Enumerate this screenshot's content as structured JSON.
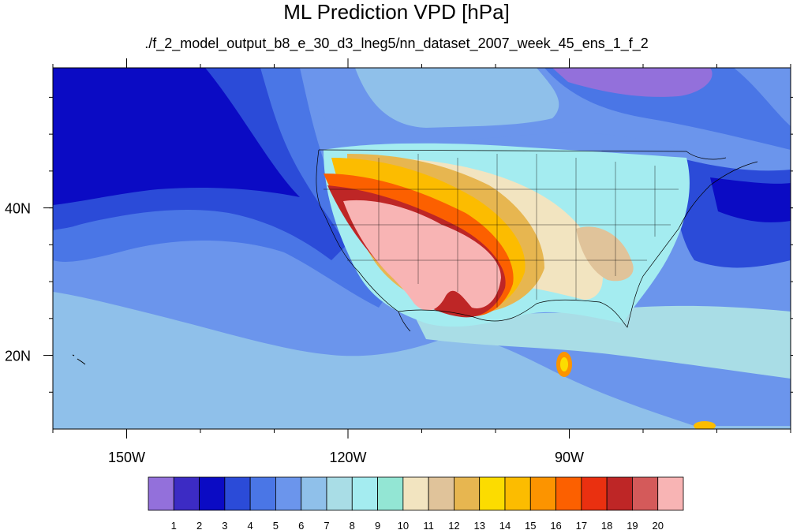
{
  "chart_data": {
    "type": "heatmap",
    "title": "ML Prediction VPD [hPa]",
    "subtitle": "./f_2_model_output_b8_e_30_d3_lneg5/nn_dataset_2007_week_45_ens_1_f_2",
    "projection": "cylindrical equidistant",
    "lon_range": [
      -160,
      -60
    ],
    "lat_range": [
      10,
      59
    ],
    "x_ticks": [
      {
        "lon": -150,
        "label": "150W"
      },
      {
        "lon": -120,
        "label": "120W"
      },
      {
        "lon": -90,
        "label": "90W"
      }
    ],
    "y_ticks": [
      {
        "lat": 40,
        "label": "40N"
      },
      {
        "lat": 20,
        "label": "20N"
      }
    ],
    "colorbar": {
      "orientation": "horizontal",
      "labels": [
        "1",
        "2",
        "3",
        "4",
        "5",
        "6",
        "7",
        "8",
        "9",
        "10",
        "11",
        "12",
        "13",
        "14",
        "15",
        "16",
        "17",
        "18",
        "19",
        "20"
      ],
      "colors": [
        "#9370db",
        "#3c2bc4",
        "#0b0bc4",
        "#2b4bd8",
        "#4a76e6",
        "#6b95ec",
        "#8fc0ea",
        "#a9dde6",
        "#a4ecf0",
        "#93e6d4",
        "#f2e4c0",
        "#e0c39a",
        "#e7b650",
        "#fcdc00",
        "#fcbc00",
        "#fc9400",
        "#fc6000",
        "#ea3010",
        "#be2626",
        "#d45a5a",
        "#f8b4b4"
      ]
    }
  }
}
